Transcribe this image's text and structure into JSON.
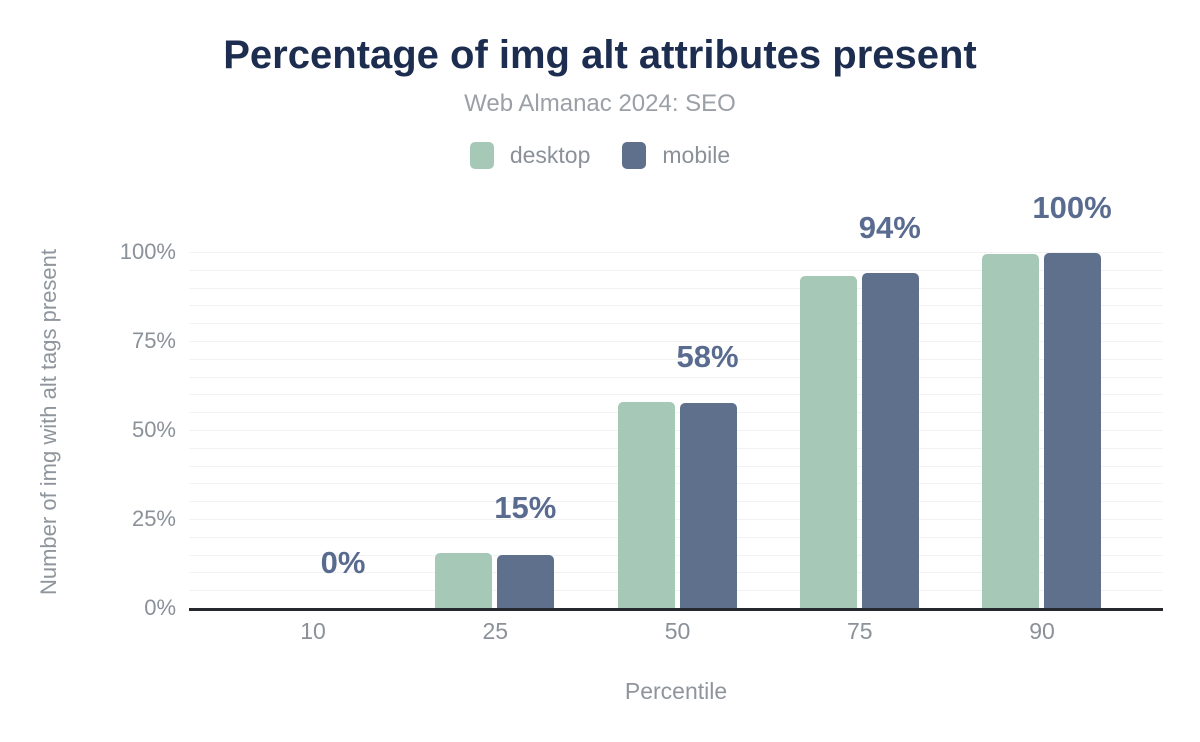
{
  "header": {
    "title": "Percentage of img alt attributes present",
    "subtitle": "Web Almanac 2024: SEO"
  },
  "legend": {
    "position": "top",
    "items": [
      {
        "label": "desktop",
        "color": "#a6c8b7"
      },
      {
        "label": "mobile",
        "color": "#5f708c"
      }
    ]
  },
  "chart_data": {
    "type": "bar",
    "title": "Percentage of img alt attributes present",
    "subtitle": "Web Almanac 2024: SEO",
    "categories": [
      "10",
      "25",
      "50",
      "75",
      "90"
    ],
    "series": [
      {
        "name": "desktop",
        "color": "#a6c8b7",
        "values": [
          0,
          15.5,
          58,
          93.3,
          99.5
        ]
      },
      {
        "name": "mobile",
        "color": "#5f708c",
        "values": [
          0,
          15,
          57.6,
          94,
          99.6
        ]
      }
    ],
    "value_labels": [
      "0%",
      "15%",
      "58%",
      "94%",
      "100%"
    ],
    "value_label_color": "#5a6b90",
    "xlabel": "Percentile",
    "ylabel": "Number of img with alt tags present",
    "yticks": [
      0,
      25,
      50,
      75,
      100
    ],
    "ytick_labels": [
      "0%",
      "25%",
      "50%",
      "75%",
      "100%"
    ],
    "ylim": [
      0,
      100
    ],
    "grid": {
      "orientation": "horizontal",
      "step_pct": 5,
      "color": "#f2f2f3"
    },
    "axis_line_color": "#26282e",
    "legend_position": "top"
  },
  "colors": {
    "title": "#1c2d4f",
    "subtitle": "#9aa0a6",
    "tick_text": "#8b9199",
    "axis_title_text": "#8f959c",
    "background": "#ffffff"
  }
}
